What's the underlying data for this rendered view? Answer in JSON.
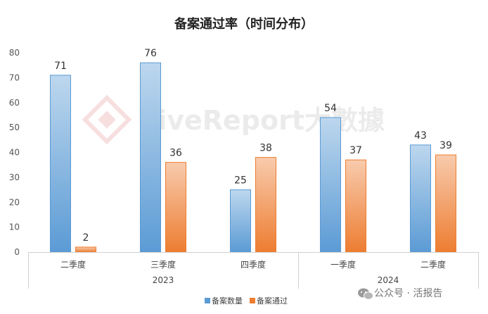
{
  "chart_data": {
    "type": "bar",
    "title": "备案通过率（时间分布）",
    "xlabel": "",
    "ylabel": "",
    "ylim": [
      0,
      80
    ],
    "yticks": [
      0,
      10,
      20,
      30,
      40,
      50,
      60,
      70,
      80
    ],
    "grid": false,
    "legend_position": "bottom",
    "categories": [
      "二季度",
      "三季度",
      "四季度",
      "一季度",
      "二季度"
    ],
    "groups": [
      {
        "label": "2023",
        "span": [
          0,
          2
        ]
      },
      {
        "label": "2024",
        "span": [
          3,
          4
        ]
      }
    ],
    "series": [
      {
        "name": "备案数量",
        "values": [
          71,
          76,
          25,
          54,
          43
        ]
      },
      {
        "name": "备案通过",
        "values": [
          2,
          36,
          38,
          37,
          39
        ]
      }
    ],
    "colors": {
      "series_0_top": "#bdd7ee",
      "series_0_bottom": "#5b9bd5",
      "series_0_stroke": "#5b9bd5",
      "series_1_top": "#f8cbad",
      "series_1_bottom": "#ed7d31",
      "series_1_stroke": "#ed7d31"
    }
  },
  "watermark": {
    "logo_text": "LiveReport大數據",
    "icon": "diamond-logo-icon"
  },
  "footer": {
    "source_text": "公众号 · 活报告",
    "icon": "wechat-icon"
  }
}
